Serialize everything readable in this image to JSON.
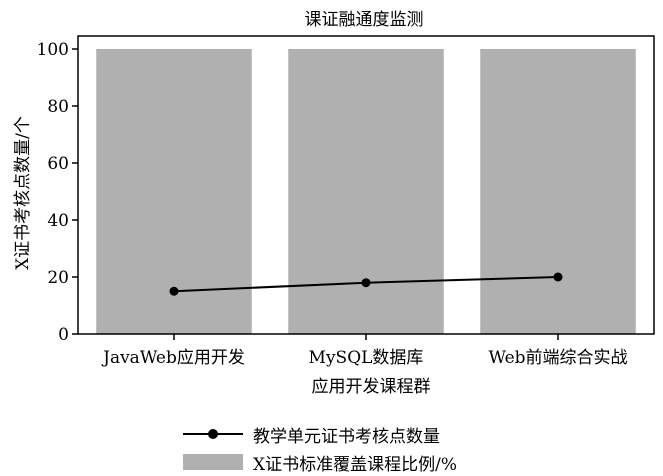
{
  "chart_data": {
    "type": "bar",
    "title": "课证融通度监测",
    "xlabel": "应用开发课程群",
    "ylabel": "X证书考核点数量/个",
    "categories": [
      "JavaWeb应用开发",
      "MySQL数据库",
      "Web前端综合实战"
    ],
    "ylim": [
      0,
      100
    ],
    "yticks": [
      "0",
      "20",
      "40",
      "60",
      "80",
      "100"
    ],
    "series": [
      {
        "name": "X证书标准覆盖课程比例/%",
        "kind": "bar",
        "values": [
          100,
          100,
          100
        ],
        "color": "#b0b0b0"
      },
      {
        "name": "教学单元证书考核点数量",
        "kind": "line",
        "values": [
          15,
          18,
          20
        ],
        "color": "#000000"
      }
    ],
    "legend_position": "bottom"
  }
}
